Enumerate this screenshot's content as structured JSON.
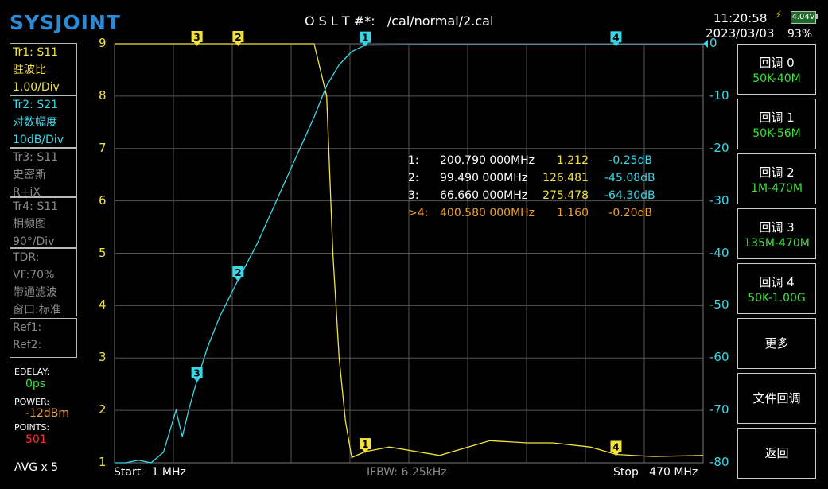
{
  "header": {
    "logo": "SYSJOINT",
    "cal_status": "O S L T #*:   /cal/normal/2.cal",
    "time": "11:20:58",
    "date": "2023/03/03",
    "battery_voltage": "4.04V",
    "battery_pct": "93%"
  },
  "traces": [
    {
      "id": "Tr1:  S11",
      "format": "驻波比",
      "scale": "1.00/Div",
      "color": "#f2e23a"
    },
    {
      "id": "Tr2:  S21",
      "format": "对数幅度",
      "scale": "10dB/Div",
      "color": "#39d8e8"
    },
    {
      "id": "Tr3:  S11",
      "format": "史密斯",
      "scale": "R+jX",
      "color": "#8a8a8a"
    },
    {
      "id": "Tr4:  S11",
      "format": "相频图",
      "scale": "90°/Div",
      "color": "#8a8a8a"
    }
  ],
  "tdr": {
    "label": "TDR:",
    "vf": "VF:70%",
    "mode": "带通滤波",
    "window": "窗口:标准"
  },
  "refs": {
    "ref1": "Ref1:",
    "ref2": "Ref2:"
  },
  "settings": {
    "edelay_label": "EDELAY:",
    "edelay_value": "0ps",
    "power_label": "POWER:",
    "power_value": "-12dBm",
    "points_label": "POINTS:",
    "points_value": "501",
    "avg": "AVG x 5"
  },
  "buttons": [
    {
      "label": "回调 0",
      "sub": "50K-40M"
    },
    {
      "label": "回调 1",
      "sub": "50K-56M"
    },
    {
      "label": "回调 2",
      "sub": "1M-470M"
    },
    {
      "label": "回调 3",
      "sub": "135M-470M"
    },
    {
      "label": "回调 4",
      "sub": "50K-1.00G"
    },
    {
      "label": "更多",
      "sub": ""
    },
    {
      "label": "文件回调",
      "sub": ""
    },
    {
      "label": "返回",
      "sub": ""
    }
  ],
  "axis": {
    "left_ticks": [
      "9",
      "8",
      "7",
      "6",
      "5",
      "4",
      "3",
      "2",
      "1"
    ],
    "right_ticks": [
      "0",
      "-10",
      "-20",
      "-30",
      "-40",
      "-50",
      "-60",
      "-70",
      "-80"
    ]
  },
  "bottom": {
    "start": "Start   1 MHz",
    "ifbw": "IFBW: 6.25kHz",
    "stop": "Stop   470 MHz"
  },
  "markers_table": [
    {
      "idx": "1:",
      "freq": "200.790 000MHz",
      "swr": "1.212",
      "db": "-0.25dB",
      "active": false
    },
    {
      "idx": "2:",
      "freq": "99.490 000MHz",
      "swr": "126.481",
      "db": "-45.08dB",
      "active": false
    },
    {
      "idx": "3:",
      "freq": "66.660 000MHz",
      "swr": "275.478",
      "db": "-64.30dB",
      "active": false
    },
    {
      "idx": ">4:",
      "freq": "400.580 000MHz",
      "swr": "1.160",
      "db": "-0.20dB",
      "active": true
    }
  ],
  "chart_data": {
    "type": "line",
    "x_unit": "MHz",
    "xlim": [
      1,
      470
    ],
    "ylim_left": [
      1,
      9
    ],
    "ylim_right": [
      -80,
      0
    ],
    "grid": true,
    "series": [
      {
        "name": "Tr1:  S11",
        "axis": "left",
        "color": "#f2e23a",
        "x": [
          1,
          160,
          170,
          175,
          180,
          185,
          190,
          200.79,
          220,
          260,
          300,
          330,
          350,
          380,
          400.58,
          430,
          470
        ],
        "y": [
          9,
          9,
          8,
          5,
          3,
          1.8,
          1.1,
          1.212,
          1.3,
          1.14,
          1.42,
          1.38,
          1.38,
          1.3,
          1.16,
          1.12,
          1.14
        ]
      },
      {
        "name": "Tr2:  S21",
        "axis": "right",
        "color": "#39d8e8",
        "x": [
          1,
          10,
          20,
          30,
          40,
          50,
          55,
          60,
          66.66,
          75,
          85,
          99.49,
          115,
          130,
          145,
          160,
          170,
          180,
          190,
          200.79,
          250,
          300,
          350,
          400.58,
          470
        ],
        "y": [
          -80,
          -80,
          -79.5,
          -80,
          -78,
          -70,
          -75,
          -70,
          -64.3,
          -58,
          -52,
          -45.08,
          -38,
          -30,
          -22,
          -14,
          -8,
          -4,
          -1.5,
          -0.25,
          -0.2,
          -0.2,
          -0.2,
          -0.2,
          -0.2
        ]
      }
    ],
    "markers": [
      {
        "label": "1",
        "freq": 200.79,
        "trace": "both"
      },
      {
        "label": "2",
        "freq": 99.49,
        "trace": "both"
      },
      {
        "label": "3",
        "freq": 66.66,
        "trace": "both"
      },
      {
        "label": "4",
        "freq": 400.58,
        "trace": "both"
      }
    ]
  }
}
